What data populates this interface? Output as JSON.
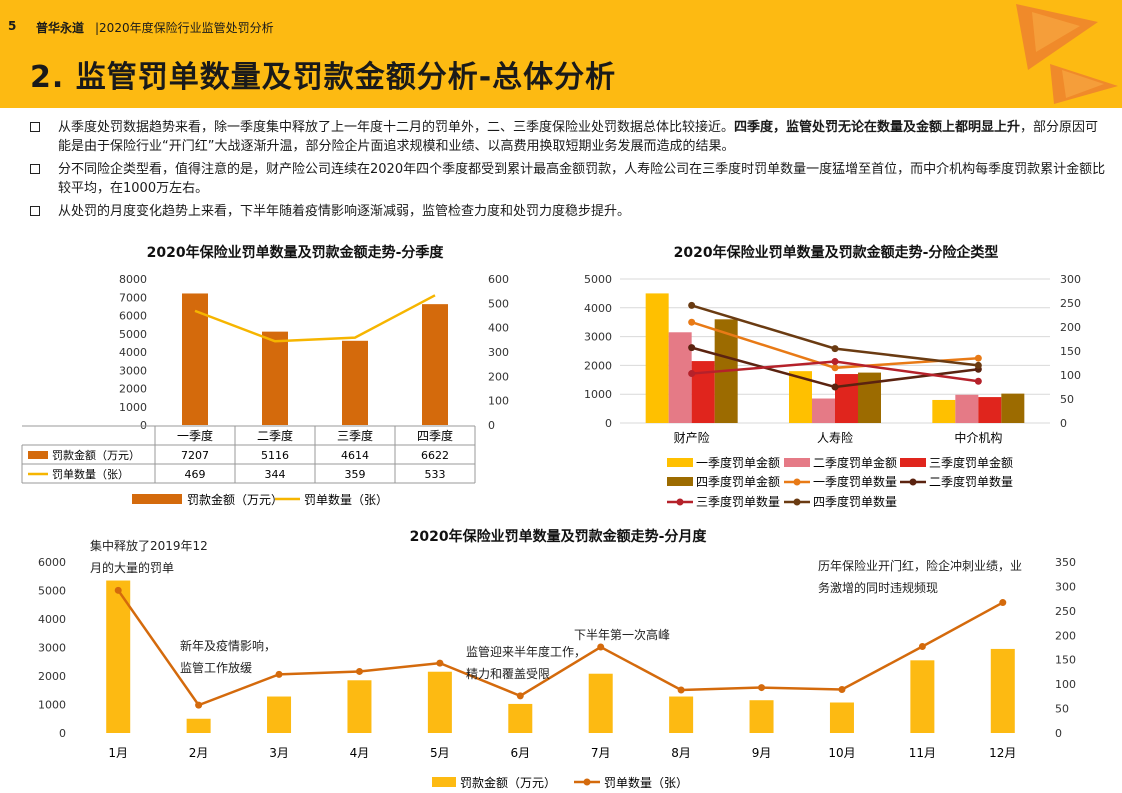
{
  "header": {
    "page_number": "5",
    "brand": "普华永道",
    "subtitle": "|2020年度保险行业监管处罚分析",
    "title": "2. 监管罚单数量及罚款金额分析-总体分析"
  },
  "bullets": [
    {
      "text": "从季度处罚数据趋势来看，除一季度集中释放了上一年度十二月的罚单外，二、三季度保险业处罚数据总体比较接近。",
      "bold": "四季度，监管处罚无论在数量及金额上都明显上升",
      "tail": "，部分原因可能是由于保险行业“开门红”大战逐渐升温，部分险企片面追求规模和业绩、以高费用换取短期业务发展而造成的结果。"
    },
    {
      "text": "分不同险企类型看，值得注意的是，财产险公司连续在2020年四个季度都受到累计最高金额罚款，人寿险公司在三季度时罚单数量一度猛增至首位，而中介机构每季度罚款累计金额比较平均，在1000万左右。",
      "bold": "",
      "tail": ""
    },
    {
      "text": "从处罚的月度变化趋势上来看，下半年随着疫情影响逐渐减弱，监管检查力度和处罚力度稳步提升。",
      "bold": "",
      "tail": ""
    }
  ],
  "colors": {
    "header": "#FDBA12",
    "bar_orange": "#D46A0C",
    "line_gold": "#F6B500",
    "q1": "#FFC000",
    "q2": "#E57A86",
    "q3": "#E0251D",
    "q4": "#9C6B00",
    "q1_line": "#E87A16",
    "q2_line": "#5B2310",
    "q3_line": "#B5212A",
    "q4_line": "#6A3B12",
    "month_bar": "#FDBA12",
    "month_line": "#D46A0C"
  },
  "chart_data": [
    {
      "type": "bar",
      "title": "2020年保险业罚单数量及罚款金额走势-分季度",
      "categories": [
        "一季度",
        "二季度",
        "三季度",
        "四季度"
      ],
      "series": [
        {
          "name": "罚款金额（万元）",
          "type": "bar",
          "axis": "left",
          "values": [
            7207,
            5116,
            4614,
            6622
          ]
        },
        {
          "name": "罚单数量（张）",
          "type": "line",
          "axis": "right",
          "values": [
            469,
            344,
            359,
            533
          ]
        }
      ],
      "ylim_left": [
        0,
        8000
      ],
      "yticks_left": [
        0,
        1000,
        2000,
        3000,
        4000,
        5000,
        6000,
        7000,
        8000
      ],
      "ylim_right": [
        0,
        600
      ],
      "yticks_right": [
        0,
        100,
        200,
        300,
        400,
        500,
        600
      ],
      "table_values": {
        "amount": [
          "7207",
          "5116",
          "4614",
          "6622"
        ],
        "count": [
          "469",
          "344",
          "359",
          "533"
        ]
      },
      "legend": [
        "罚款金额（万元）",
        "罚单数量（张）"
      ],
      "legend_position": "bottom"
    },
    {
      "type": "bar",
      "title": "2020年保险业罚单数量及罚款金额走势-分险企类型",
      "categories": [
        "财产险",
        "人寿险",
        "中介机构"
      ],
      "series": [
        {
          "name": "一季度罚单金额",
          "type": "bar",
          "axis": "left",
          "values": [
            4500,
            1800,
            800
          ]
        },
        {
          "name": "二季度罚单金额",
          "type": "bar",
          "axis": "left",
          "values": [
            3150,
            850,
            980
          ]
        },
        {
          "name": "三季度罚单金额",
          "type": "bar",
          "axis": "left",
          "values": [
            2150,
            1700,
            900
          ]
        },
        {
          "name": "四季度罚单金额",
          "type": "bar",
          "axis": "left",
          "values": [
            3600,
            1750,
            1020
          ]
        },
        {
          "name": "一季度罚单数量",
          "type": "line",
          "axis": "right",
          "values": [
            210,
            115,
            135
          ]
        },
        {
          "name": "二季度罚单数量",
          "type": "line",
          "axis": "right",
          "values": [
            157,
            75,
            112
          ]
        },
        {
          "name": "三季度罚单数量",
          "type": "line",
          "axis": "right",
          "values": [
            103,
            128,
            87
          ]
        },
        {
          "name": "四季度罚单数量",
          "type": "line",
          "axis": "right",
          "values": [
            245,
            155,
            120
          ]
        }
      ],
      "ylim_left": [
        0,
        5000
      ],
      "yticks_left": [
        0,
        1000,
        2000,
        3000,
        4000,
        5000
      ],
      "ylim_right": [
        0,
        300
      ],
      "yticks_right": [
        0,
        50,
        100,
        150,
        200,
        250,
        300
      ],
      "legend_position": "bottom",
      "grid": true
    },
    {
      "type": "bar",
      "title": "2020年保险业罚单数量及罚款金额走势-分月度",
      "categories": [
        "1月",
        "2月",
        "3月",
        "4月",
        "5月",
        "6月",
        "7月",
        "8月",
        "9月",
        "10月",
        "11月",
        "12月"
      ],
      "series": [
        {
          "name": "罚款金额（万元）",
          "type": "bar",
          "axis": "left",
          "values": [
            5350,
            500,
            1280,
            1850,
            2150,
            1020,
            2080,
            1280,
            1150,
            1070,
            2550,
            2950
          ]
        },
        {
          "name": "罚单数量（张）",
          "type": "line",
          "axis": "right",
          "values": [
            292,
            57,
            120,
            126,
            143,
            76,
            176,
            88,
            93,
            89,
            177,
            267
          ]
        }
      ],
      "ylim_left": [
        0,
        6000
      ],
      "yticks_left": [
        0,
        1000,
        2000,
        3000,
        4000,
        5000,
        6000
      ],
      "ylim_right": [
        0,
        350
      ],
      "yticks_right": [
        0,
        50,
        100,
        150,
        200,
        250,
        300,
        350
      ],
      "annotations": [
        {
          "lines": [
            "集中释放了2019年12",
            "月的大量的罚单"
          ]
        },
        {
          "lines": [
            "新年及疫情影响，",
            "监管工作放缓"
          ]
        },
        {
          "lines": [
            "监管迎来半年度工作，",
            "精力和覆盖受限"
          ]
        },
        {
          "lines": [
            "下半年第一次高峰"
          ]
        },
        {
          "lines": [
            "历年保险业开门红，险企冲刺业绩，业",
            "务激增的同时违规频现"
          ]
        }
      ],
      "legend_position": "bottom"
    }
  ]
}
